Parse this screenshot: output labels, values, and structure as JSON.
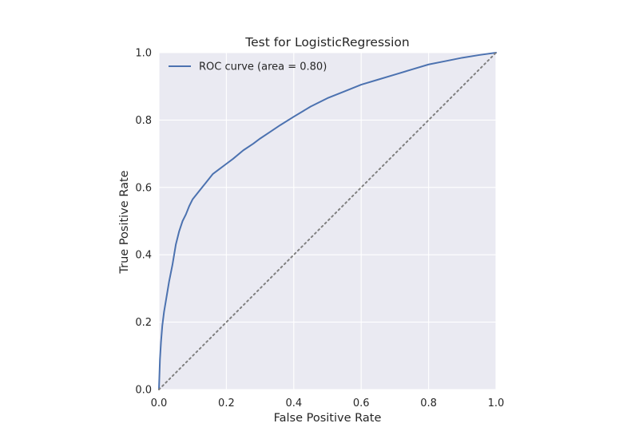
{
  "chart_data": {
    "type": "line",
    "title": "Test for LogisticRegression",
    "xlabel": "False Positive Rate",
    "ylabel": "True Positive Rate",
    "xlim": [
      0.0,
      1.0
    ],
    "ylim": [
      0.0,
      1.0
    ],
    "xticks": [
      "0.0",
      "0.2",
      "0.4",
      "0.6",
      "0.8",
      "1.0"
    ],
    "yticks": [
      "0.0",
      "0.2",
      "0.4",
      "0.6",
      "0.8",
      "1.0"
    ],
    "grid": true,
    "legend_position": "top-left",
    "series": [
      {
        "name": "ROC curve (area = 0.80)",
        "color": "#4c72b0",
        "style": "solid",
        "x": [
          0.0,
          0.003,
          0.006,
          0.01,
          0.015,
          0.02,
          0.03,
          0.04,
          0.05,
          0.06,
          0.07,
          0.08,
          0.09,
          0.1,
          0.12,
          0.14,
          0.16,
          0.18,
          0.2,
          0.22,
          0.25,
          0.28,
          0.3,
          0.33,
          0.36,
          0.4,
          0.45,
          0.5,
          0.55,
          0.6,
          0.65,
          0.7,
          0.75,
          0.8,
          0.85,
          0.9,
          0.95,
          1.0
        ],
        "y": [
          0.0,
          0.09,
          0.14,
          0.19,
          0.23,
          0.26,
          0.32,
          0.37,
          0.43,
          0.47,
          0.5,
          0.52,
          0.545,
          0.565,
          0.59,
          0.615,
          0.64,
          0.655,
          0.67,
          0.685,
          0.71,
          0.73,
          0.745,
          0.765,
          0.785,
          0.81,
          0.84,
          0.865,
          0.885,
          0.905,
          0.92,
          0.935,
          0.95,
          0.965,
          0.975,
          0.985,
          0.993,
          1.0
        ]
      },
      {
        "name": "",
        "color": "#808080",
        "style": "dotted",
        "x": [
          0.0,
          1.0
        ],
        "y": [
          0.0,
          1.0
        ]
      }
    ]
  },
  "colors": {
    "plot_background": "#eaeaf2",
    "grid": "#ffffff",
    "text": "#262626"
  }
}
